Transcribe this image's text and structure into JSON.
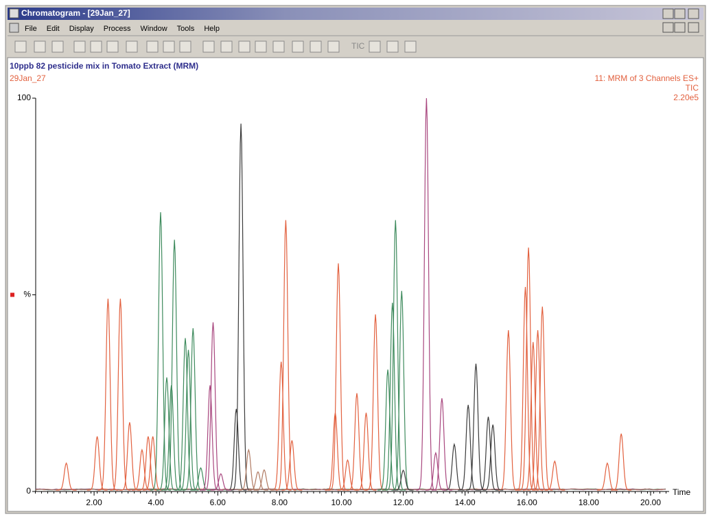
{
  "window": {
    "title": "Chromatogram - [29Jan_27]",
    "menu": [
      "File",
      "Edit",
      "Display",
      "Process",
      "Window",
      "Tools",
      "Help"
    ],
    "toolbar_text": "TIC"
  },
  "chart_data": {
    "type": "peaks",
    "title": "10ppb 82 pesticide mix in Tomato Extract (MRM)",
    "annotations": [
      "29Jan_27",
      "11: MRM of 3 Channels ES+",
      "TIC",
      "2.20e5"
    ],
    "xlabel": "Time",
    "xlim": [
      0.1,
      20.6
    ],
    "ylim": [
      0,
      100
    ],
    "xticks": [
      {
        "value": 2,
        "label": "2.00"
      },
      {
        "value": 4,
        "label": "4.00"
      },
      {
        "value": 6,
        "label": "6.00"
      },
      {
        "value": 8,
        "label": "8.00"
      },
      {
        "value": 10,
        "label": "10.00"
      },
      {
        "value": 12,
        "label": "12.00"
      },
      {
        "value": 14,
        "label": "14.00"
      },
      {
        "value": 16,
        "label": "16.00"
      },
      {
        "value": 18,
        "label": "18.00"
      },
      {
        "value": 20,
        "label": "20.00"
      }
    ],
    "yticks": [
      0,
      {
        "value": 50,
        "label": "%"
      },
      100
    ],
    "series": [
      {
        "color": "#e2603e",
        "x": [
          1.1,
          2.1,
          2.45,
          2.85,
          3.15,
          3.55,
          3.75,
          3.9,
          8.05,
          8.2,
          8.4,
          9.8,
          9.9,
          10.2,
          10.5,
          10.8,
          11.1,
          15.4,
          15.95,
          16.05,
          16.2,
          16.35,
          16.5,
          16.9,
          18.6,
          19.05
        ],
        "values": [
          7.2,
          14,
          49,
          49,
          17.6,
          10.6,
          14,
          14,
          33,
          69,
          13,
          20,
          58,
          8,
          25,
          20,
          45,
          41,
          52,
          62,
          38,
          41,
          47,
          7.7,
          7.2,
          14.7
        ]
      },
      {
        "color": "#3d8a5c",
        "x": [
          4.15,
          4.35,
          4.5,
          4.6,
          4.95,
          5.05,
          5.2,
          5.45,
          11.5,
          11.65,
          11.75,
          11.95
        ],
        "values": [
          71,
          29,
          27,
          64,
          39,
          36,
          41.5,
          6,
          31,
          48,
          69,
          51
        ]
      },
      {
        "color": "#3a3a3a",
        "x": [
          6.6,
          6.75,
          12.0,
          13.65,
          14.1,
          14.35,
          14.75,
          14.9
        ],
        "values": [
          21,
          93.5,
          5.4,
          12,
          22,
          32.5,
          19,
          17
        ]
      },
      {
        "color": "#a8467e",
        "x": [
          5.75,
          5.85,
          6.1,
          12.75,
          13.05,
          13.25
        ],
        "values": [
          27,
          43,
          4.5,
          100,
          9.8,
          23.7
        ]
      },
      {
        "color": "#b07a62",
        "x": [
          7.0,
          7.3,
          7.5
        ],
        "values": [
          10.6,
          5,
          5.5
        ]
      }
    ]
  }
}
